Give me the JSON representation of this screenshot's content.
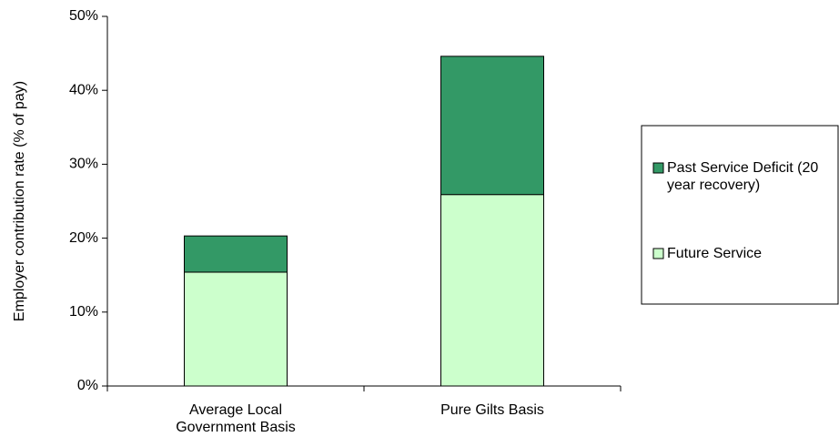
{
  "chart_data": {
    "type": "stacked_bar",
    "y_label": "Employer contribution rate (% of pay)",
    "categories": [
      "Average Local Government Basis",
      "Pure Gilts Basis"
    ],
    "series": [
      {
        "name": "Future Service",
        "color": "#ccffcc",
        "values": [
          15.4,
          25.9
        ]
      },
      {
        "name": "Past Service Deficit (20 year recovery)",
        "color": "#339966",
        "values": [
          4.9,
          18.7
        ]
      }
    ],
    "ylim": [
      0,
      50
    ],
    "yticks": [
      {
        "value": 0,
        "label": "0%"
      },
      {
        "value": 10,
        "label": "10%"
      },
      {
        "value": 20,
        "label": "20%"
      },
      {
        "value": 30,
        "label": "30%"
      },
      {
        "value": 40,
        "label": "40%"
      },
      {
        "value": 50,
        "label": "50%"
      }
    ],
    "legend": "right"
  }
}
